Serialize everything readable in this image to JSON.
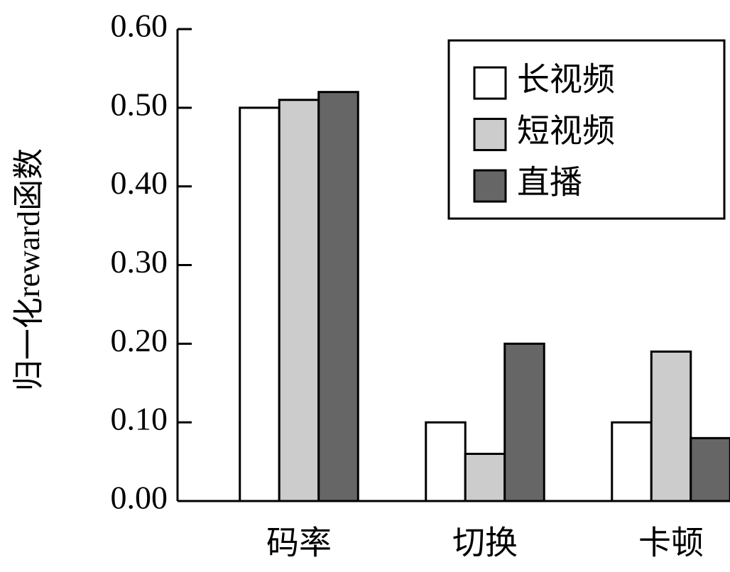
{
  "chart_data": {
    "type": "bar",
    "y_label": "归一化reward函数",
    "categories": [
      "码率",
      "切换",
      "卡顿"
    ],
    "series": [
      {
        "name": "长视频",
        "color": "#ffffff",
        "values": [
          0.5,
          0.1,
          0.1
        ]
      },
      {
        "name": "短视频",
        "color": "#cccccc",
        "values": [
          0.51,
          0.06,
          0.19
        ]
      },
      {
        "name": "直播",
        "color": "#666666",
        "values": [
          0.52,
          0.2,
          0.08
        ]
      }
    ],
    "ylim": [
      0,
      0.6
    ],
    "yticks": [
      {
        "value": 0,
        "label": "0.00"
      },
      {
        "value": 0.1,
        "label": "0.10"
      },
      {
        "value": 0.2,
        "label": "0.20"
      },
      {
        "value": 0.3,
        "label": "0.30"
      },
      {
        "value": 0.4,
        "label": "0.40"
      },
      {
        "value": 0.5,
        "label": "0.50"
      },
      {
        "value": 0.6,
        "label": "0.60"
      }
    ],
    "legend": "upper right"
  }
}
